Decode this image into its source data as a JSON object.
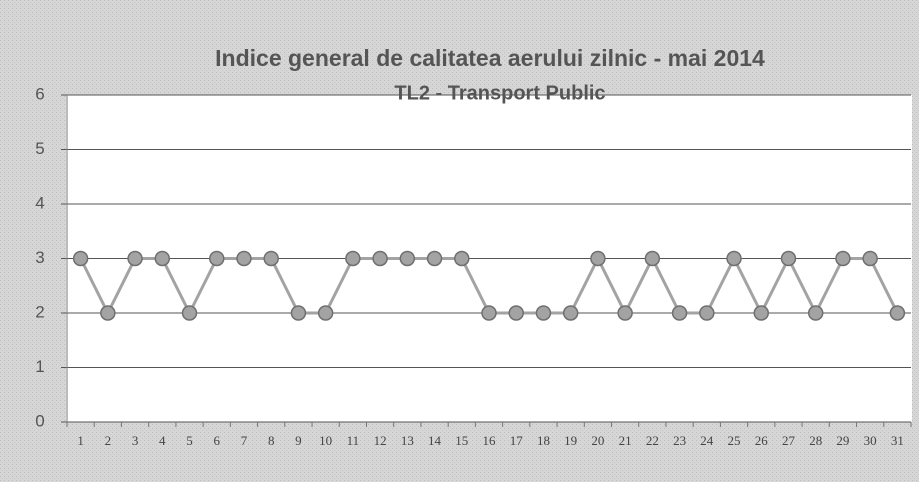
{
  "chart_data": {
    "type": "line",
    "title": "Indice general de calitatea aerului zilnic - mai  2014",
    "subtitle": "TL2 - Transport Public",
    "categories": [
      "1",
      "2",
      "3",
      "4",
      "5",
      "6",
      "7",
      "8",
      "9",
      "10",
      "11",
      "12",
      "13",
      "14",
      "15",
      "16",
      "17",
      "18",
      "19",
      "20",
      "21",
      "22",
      "23",
      "24",
      "25",
      "26",
      "27",
      "28",
      "29",
      "30",
      "31"
    ],
    "values": [
      3,
      2,
      3,
      3,
      2,
      3,
      3,
      3,
      2,
      2,
      3,
      3,
      3,
      3,
      3,
      2,
      2,
      2,
      2,
      3,
      2,
      3,
      2,
      2,
      3,
      2,
      3,
      2,
      3,
      3,
      2
    ],
    "color": "#a3a3a3",
    "ylim": [
      0,
      6
    ],
    "yticks": [
      0,
      1,
      2,
      3,
      4,
      5,
      6
    ],
    "grid": true
  }
}
